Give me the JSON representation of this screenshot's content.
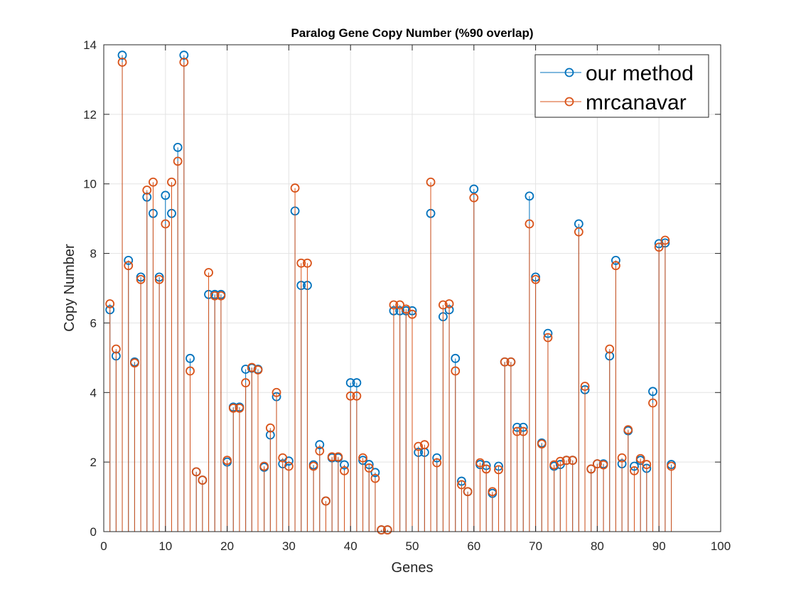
{
  "chart_data": {
    "type": "stem",
    "title": "Paralog Gene Copy Number (%90 overlap)",
    "xlabel": "Genes",
    "ylabel": "Copy Number",
    "xlim": [
      0,
      100
    ],
    "ylim": [
      0,
      14
    ],
    "xticks": [
      0,
      10,
      20,
      30,
      40,
      50,
      60,
      70,
      80,
      90,
      100
    ],
    "yticks": [
      0,
      2,
      4,
      6,
      8,
      10,
      12,
      14
    ],
    "grid": true,
    "legend_position": "top-right",
    "colors": {
      "our_method": "#0072BD",
      "mrcanavar": "#D95319"
    },
    "series": [
      {
        "name": "our method",
        "color": "#0072BD",
        "x": [
          1,
          2,
          3,
          4,
          5,
          6,
          7,
          8,
          9,
          10,
          11,
          12,
          13,
          14,
          15,
          16,
          17,
          18,
          19,
          20,
          21,
          22,
          23,
          24,
          25,
          26,
          27,
          28,
          29,
          30,
          31,
          32,
          33,
          34,
          35,
          36,
          37,
          38,
          39,
          40,
          41,
          42,
          43,
          44,
          45,
          46,
          47,
          48,
          49,
          50,
          51,
          52,
          53,
          54,
          55,
          56,
          57,
          58,
          59,
          60,
          61,
          62,
          63,
          64,
          65,
          66,
          67,
          68,
          69,
          70,
          71,
          72,
          73,
          74,
          75,
          76,
          77,
          78,
          79,
          80,
          81,
          82,
          83,
          84,
          85,
          86,
          87,
          88,
          89,
          90,
          91,
          92
        ],
        "values": [
          6.38,
          5.05,
          13.7,
          7.8,
          4.88,
          7.32,
          9.62,
          9.15,
          7.32,
          9.67,
          9.15,
          11.05,
          13.7,
          4.98,
          1.72,
          1.48,
          6.82,
          6.82,
          6.82,
          2.0,
          3.58,
          3.58,
          4.67,
          4.7,
          4.67,
          1.85,
          2.78,
          3.88,
          1.95,
          2.03,
          9.22,
          7.08,
          7.08,
          1.92,
          2.5,
          0.88,
          2.12,
          2.12,
          1.92,
          4.28,
          4.28,
          2.05,
          1.93,
          1.7,
          0.05,
          0.05,
          6.35,
          6.35,
          6.35,
          6.35,
          2.28,
          2.28,
          9.15,
          2.12,
          6.18,
          6.38,
          4.98,
          1.45,
          1.15,
          9.85,
          1.93,
          1.9,
          1.1,
          1.88,
          4.88,
          4.88,
          3.0,
          3.0,
          9.65,
          7.32,
          2.55,
          5.7,
          1.88,
          1.93,
          2.05,
          2.05,
          8.85,
          4.08,
          1.8,
          1.95,
          1.95,
          5.05,
          7.8,
          1.95,
          2.9,
          1.88,
          2.05,
          1.82,
          4.03,
          8.28,
          8.3,
          1.93
        ]
      },
      {
        "name": "mrcanavar",
        "color": "#D95319",
        "x": [
          1,
          2,
          3,
          4,
          5,
          6,
          7,
          8,
          9,
          10,
          11,
          12,
          13,
          14,
          15,
          16,
          17,
          18,
          19,
          20,
          21,
          22,
          23,
          24,
          25,
          26,
          27,
          28,
          29,
          30,
          31,
          32,
          33,
          34,
          35,
          36,
          37,
          38,
          39,
          40,
          41,
          42,
          43,
          44,
          45,
          46,
          47,
          48,
          49,
          50,
          51,
          52,
          53,
          54,
          55,
          56,
          57,
          58,
          59,
          60,
          61,
          62,
          63,
          64,
          65,
          66,
          67,
          68,
          69,
          70,
          71,
          72,
          73,
          74,
          75,
          76,
          77,
          78,
          79,
          80,
          81,
          82,
          83,
          84,
          85,
          86,
          87,
          88,
          89,
          90,
          91,
          92
        ],
        "values": [
          6.55,
          5.25,
          13.5,
          7.65,
          4.85,
          7.25,
          9.82,
          10.05,
          7.25,
          8.85,
          10.05,
          10.65,
          13.5,
          4.62,
          1.72,
          1.48,
          7.45,
          6.78,
          6.78,
          2.05,
          3.55,
          3.55,
          4.28,
          4.72,
          4.65,
          1.88,
          2.98,
          4.0,
          2.12,
          1.88,
          9.88,
          7.72,
          7.72,
          1.88,
          2.32,
          0.88,
          2.15,
          2.15,
          1.75,
          3.9,
          3.9,
          2.12,
          1.83,
          1.53,
          0.05,
          0.05,
          6.52,
          6.52,
          6.4,
          6.25,
          2.45,
          2.5,
          10.05,
          1.98,
          6.52,
          6.55,
          4.62,
          1.35,
          1.15,
          9.6,
          1.98,
          1.8,
          1.15,
          1.78,
          4.88,
          4.88,
          2.88,
          2.88,
          8.85,
          7.25,
          2.52,
          5.58,
          1.92,
          2.02,
          2.05,
          2.05,
          8.62,
          4.18,
          1.8,
          1.95,
          1.92,
          5.25,
          7.65,
          2.12,
          2.93,
          1.75,
          2.1,
          1.93,
          3.7,
          8.18,
          8.38,
          1.88
        ]
      }
    ]
  }
}
